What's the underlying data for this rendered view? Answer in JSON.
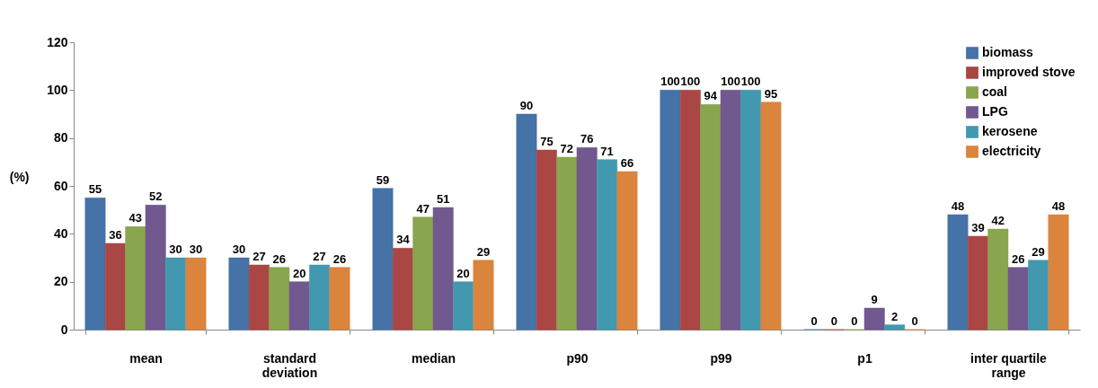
{
  "chart_data": {
    "type": "bar",
    "ylabel": "(%)",
    "categories": [
      "mean",
      "standard deviation",
      "median",
      "p90",
      "p99",
      "p1",
      "inter quartile range"
    ],
    "series": [
      {
        "name": "biomass",
        "color": "#4572a7",
        "values": [
          55,
          30,
          59,
          90,
          100,
          0,
          48
        ]
      },
      {
        "name": "improved stove",
        "color": "#aa4643",
        "values": [
          36,
          27,
          34,
          75,
          100,
          0,
          39
        ]
      },
      {
        "name": "coal",
        "color": "#89a54e",
        "values": [
          43,
          26,
          47,
          72,
          94,
          0,
          42
        ]
      },
      {
        "name": "LPG",
        "color": "#71588f",
        "values": [
          52,
          20,
          51,
          76,
          100,
          9,
          26
        ]
      },
      {
        "name": "kerosene",
        "color": "#4198af",
        "values": [
          30,
          27,
          20,
          71,
          100,
          2,
          29
        ]
      },
      {
        "name": "electricity",
        "color": "#db843d",
        "values": [
          30,
          26,
          29,
          66,
          95,
          0,
          48
        ]
      }
    ],
    "ylim": [
      0,
      120
    ],
    "yticks": [
      0,
      20,
      40,
      60,
      80,
      100,
      120
    ],
    "grid": false,
    "legend": "top right",
    "data_labels": true
  }
}
